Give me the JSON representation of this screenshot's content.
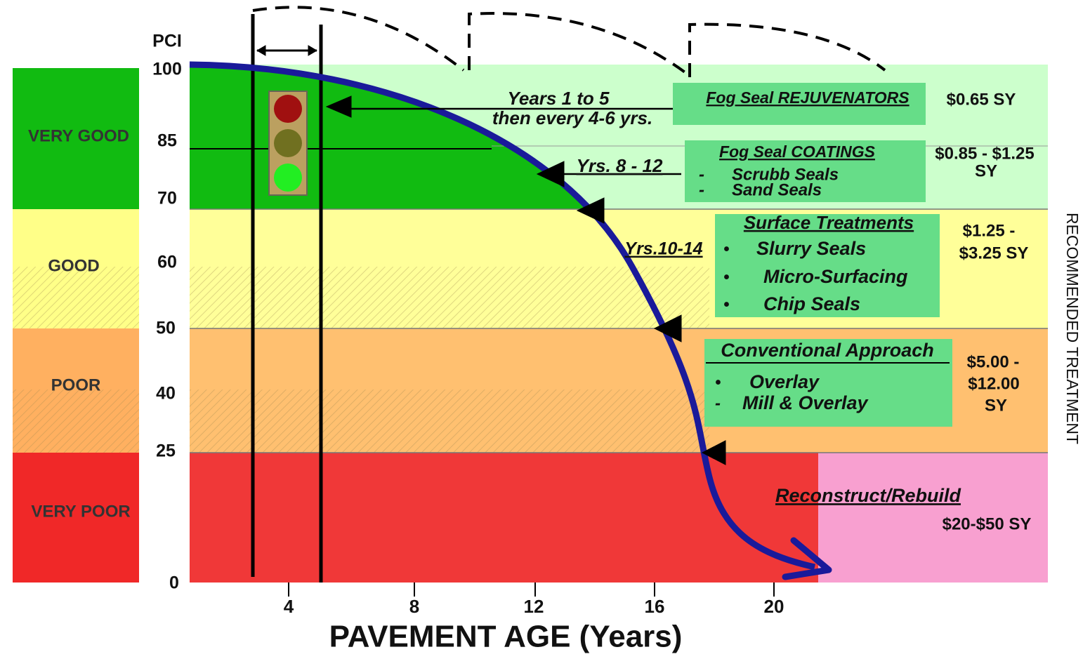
{
  "axis": {
    "y_title": "PCI",
    "y_labels": [
      "100",
      "85",
      "70",
      "60",
      "50",
      "40",
      "25",
      "0"
    ],
    "x_labels": [
      "4",
      "8",
      "12",
      "16",
      "20"
    ],
    "x_title": "PAVEMENT AGE (Years)",
    "right_title": "RECOMMENDED TREATMENT"
  },
  "condition_bands": [
    "VERY GOOD",
    "GOOD",
    "POOR",
    "VERY POOR"
  ],
  "timing_labels": [
    "Years 1 to 5",
    "then every 4-6 yrs.",
    "Yrs. 8 - 12",
    "Yrs.10-14"
  ],
  "treatments": [
    {
      "title": "Fog Seal REJUVENATORS",
      "cost": [
        "$0.65 SY"
      ]
    },
    {
      "title": "Fog Seal COATINGS",
      "items": [
        "Scrubb Seals",
        "Sand Seals"
      ],
      "cost": [
        "$0.85 - $1.25",
        "SY"
      ]
    },
    {
      "title": "Surface Treatments",
      "items": [
        "Slurry Seals",
        "Micro-Surfacing",
        "Chip Seals"
      ],
      "cost": [
        "$1.25 -",
        "$3.25 SY"
      ]
    },
    {
      "title": "Conventional Approach",
      "items": [
        "Overlay",
        "Mill & Overlay"
      ],
      "cost": [
        "$5.00 -",
        "$12.00",
        "SY"
      ]
    },
    {
      "title": "Reconstruct/Rebuild",
      "cost": [
        "$20-$50 SY"
      ]
    }
  ]
}
